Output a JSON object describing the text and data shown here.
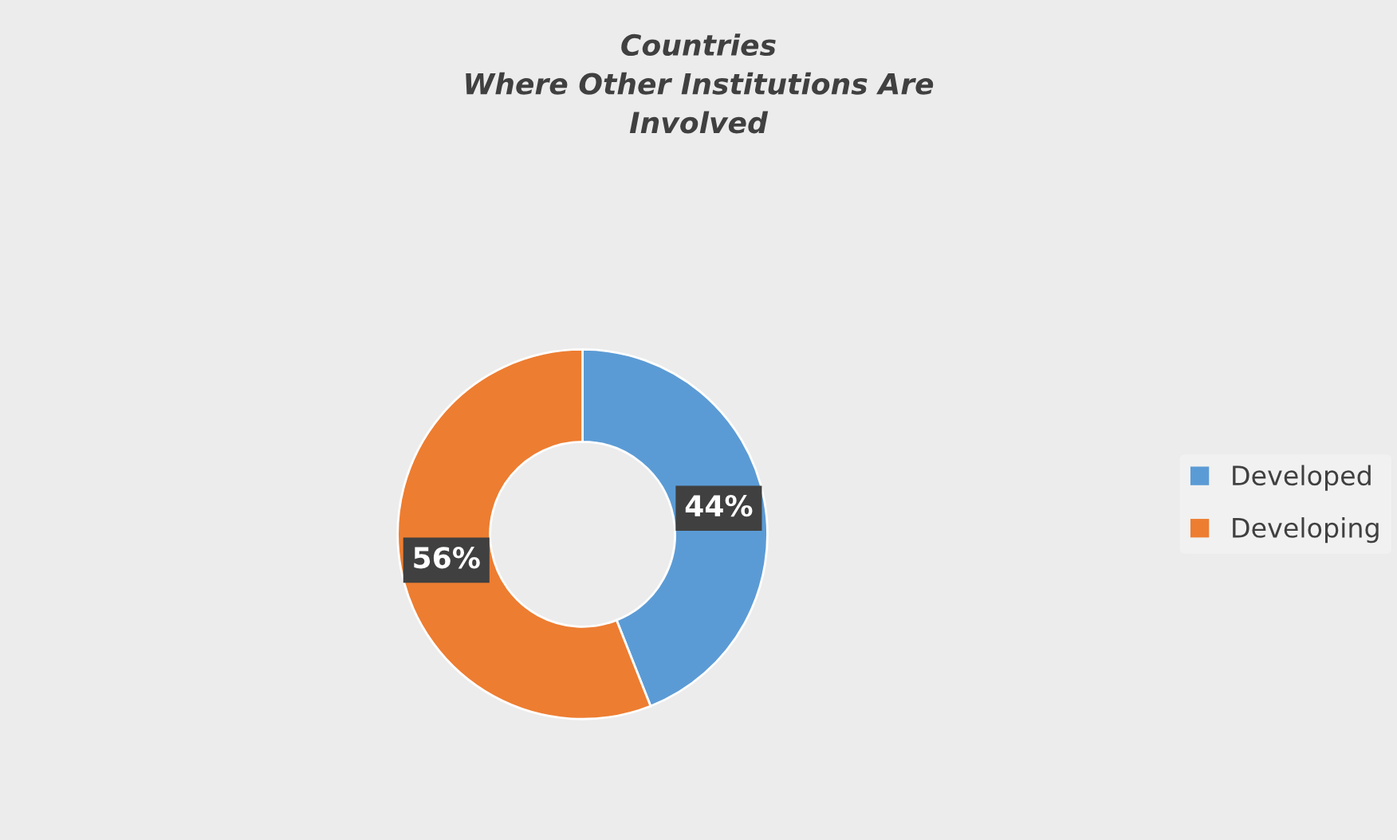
{
  "chart_data": {
    "type": "donut",
    "title": "Countries\nWhere Other Institutions Are\nInvolved",
    "categories": [
      "Developed",
      "Developing"
    ],
    "values": [
      44,
      56
    ],
    "colors": [
      "#5b9bd5",
      "#ed7d31"
    ],
    "value_labels": [
      "44%",
      "56%"
    ],
    "legend": "right"
  }
}
